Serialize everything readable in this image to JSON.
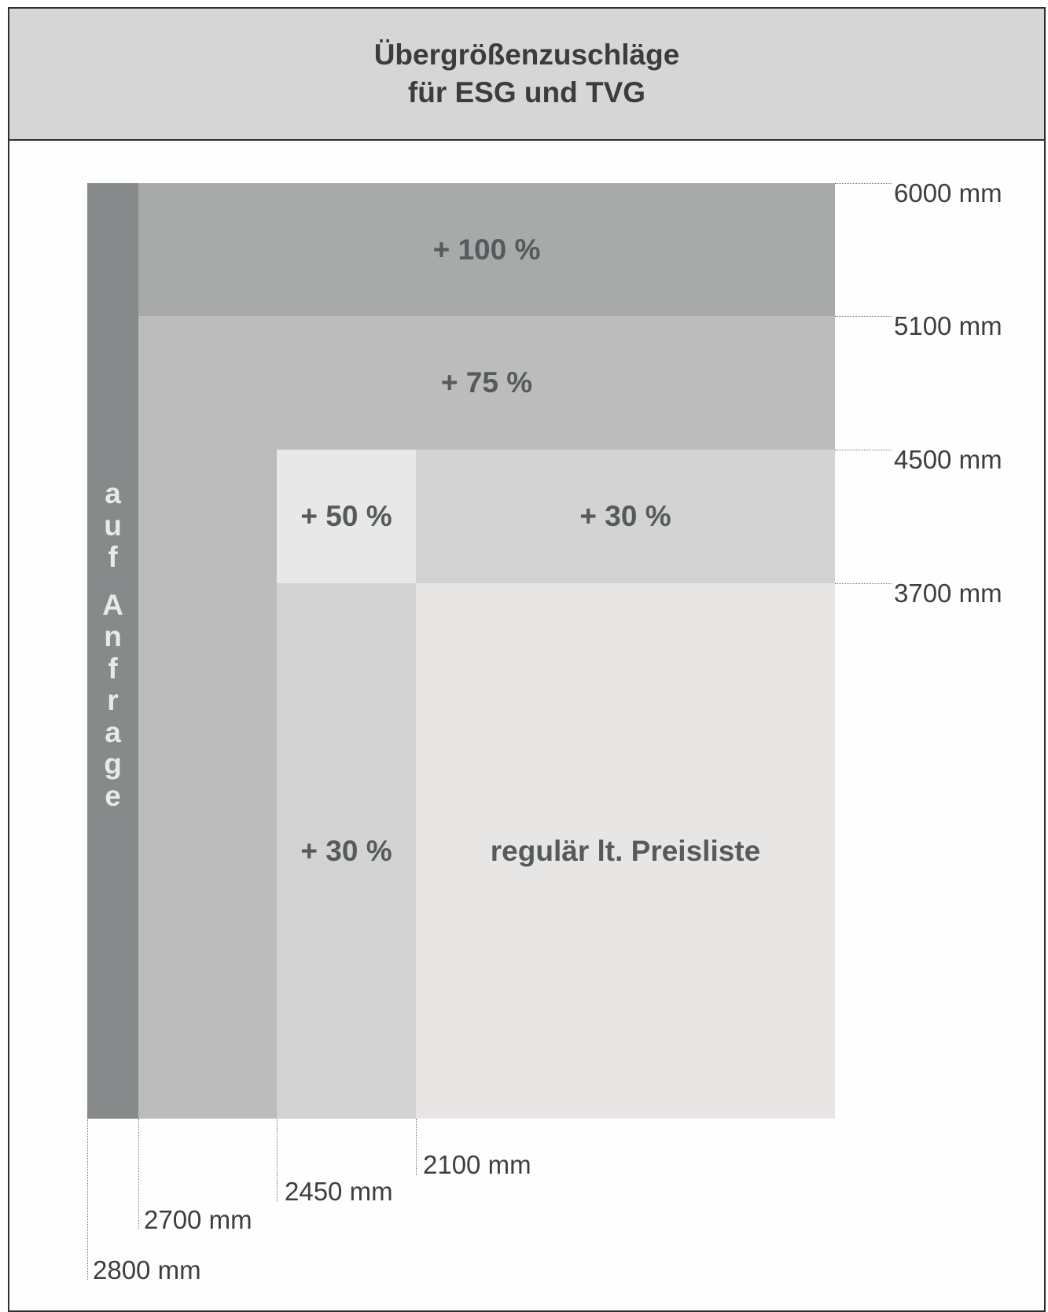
{
  "header": {
    "title_line1": "Übergrößenzuschläge",
    "title_line2": "für ESG und TVG"
  },
  "zones": {
    "plus100": "+ 100 %",
    "plus75": "+ 75 %",
    "plus50": "+ 50 %",
    "plus30_top": "+ 30 %",
    "plus30_left": "+ 30 %",
    "regular": "regulär lt. Preisliste",
    "on_request_chars": [
      "a",
      "u",
      "f",
      "",
      "A",
      "n",
      "f",
      "r",
      "a",
      "g",
      "e"
    ]
  },
  "height_labels": [
    "6000 mm",
    "5100 mm",
    "4500 mm",
    "3700 mm"
  ],
  "width_labels": [
    "2100 mm",
    "2450 mm",
    "2700 mm",
    "2800 mm"
  ],
  "colors": {
    "plus100": "#a8aaaa",
    "plus75": "#bcbcbc",
    "plus50": "#e8e8e8",
    "plus30": "#d3d3d3",
    "regular": "#e8e6e5",
    "on_request": "#878a8a",
    "header": "#d6d6d6"
  }
}
